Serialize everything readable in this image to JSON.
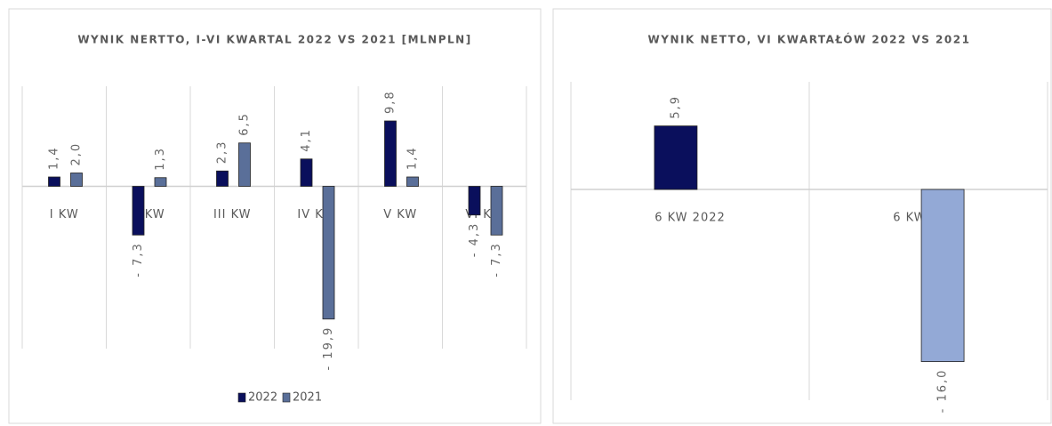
{
  "chart_data": [
    {
      "type": "bar",
      "title": "WYNIK NERTTO, I-VI KWARTAL 2022 VS 2021 [MLNPLN]",
      "categories": [
        "I KW",
        "II KW",
        "III KW",
        "IV KW",
        "V KW",
        "VI KW"
      ],
      "series": [
        {
          "name": "2022",
          "color": "#0a0f5c",
          "values": [
            1.4,
            -7.3,
            2.3,
            4.1,
            9.8,
            -4.3
          ],
          "value_labels": [
            "1,4",
            "- 7,3",
            "2,3",
            "4,1",
            "9,8",
            "- 4,3"
          ]
        },
        {
          "name": "2021",
          "color": "#5a6f99",
          "values": [
            2.0,
            1.3,
            6.5,
            -19.9,
            1.4,
            -7.3
          ],
          "value_labels": [
            "2,0",
            "1,3",
            "6,5",
            "- 19,9",
            "1,4",
            "- 7,3"
          ]
        }
      ],
      "ylim": [
        -25,
        15
      ],
      "legend": "bottom"
    },
    {
      "type": "bar",
      "title": "WYNIK NETTO, VI KWARTAŁÓW 2022 VS 2021",
      "categories": [
        "6 KW 2022",
        "6 KW 2021"
      ],
      "values": [
        5.9,
        -16.0
      ],
      "value_labels": [
        "5,9",
        "- 16,0"
      ],
      "colors": [
        "#0a0f5c",
        "#93a9d6"
      ],
      "ylim": [
        -20,
        10
      ]
    }
  ]
}
